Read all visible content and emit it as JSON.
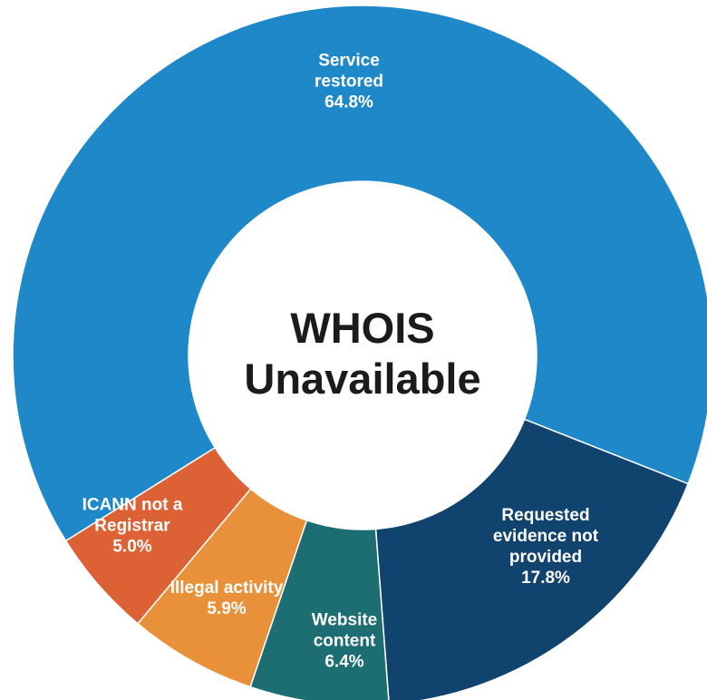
{
  "chart_data": {
    "type": "pie",
    "donut": true,
    "title": "WHOIS Unavailable",
    "categories": [
      "Service restored",
      "Requested evidence not provided",
      "Website content",
      "Illegal activity",
      "ICANN not a Registrar"
    ],
    "values": [
      64.8,
      17.8,
      6.4,
      5.9,
      5.0
    ],
    "value_labels": [
      "64.8%",
      "17.8%",
      "6.4%",
      "5.9%",
      "5.0%"
    ],
    "colors": [
      "#1e88c8",
      "#10436d",
      "#1c6e72",
      "#e8913a",
      "#dc6236"
    ]
  }
}
